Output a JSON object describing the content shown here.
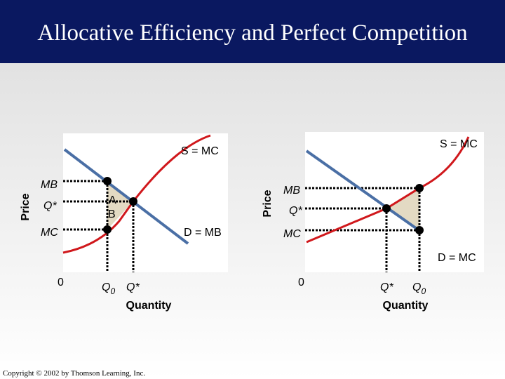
{
  "title": "Allocative Efficiency and Perfect Competition",
  "left_diagram": {
    "y_axis_label": "Price",
    "x_axis_label": "Quantity",
    "supply_label": "S = MC",
    "demand_label": "D = MB",
    "price_labels": [
      "MB",
      "Q*",
      "MC"
    ],
    "area_labels": [
      "A",
      "B"
    ],
    "origin": "0",
    "quantity_labels": [
      {
        "base": "Q",
        "sub": "0"
      },
      {
        "base": "Q*"
      }
    ]
  },
  "right_diagram": {
    "y_axis_label": "Price",
    "x_axis_label": "Quantity",
    "supply_label": "S = MC",
    "demand_label": "D = MC",
    "price_labels": [
      "MB",
      "Q*",
      "MC"
    ],
    "origin": "0",
    "quantity_labels": [
      {
        "base": "Q*"
      },
      {
        "base": "Q",
        "sub": "0"
      }
    ]
  },
  "copyright": "Copyright © 2002 by Thomson Learning, Inc."
}
